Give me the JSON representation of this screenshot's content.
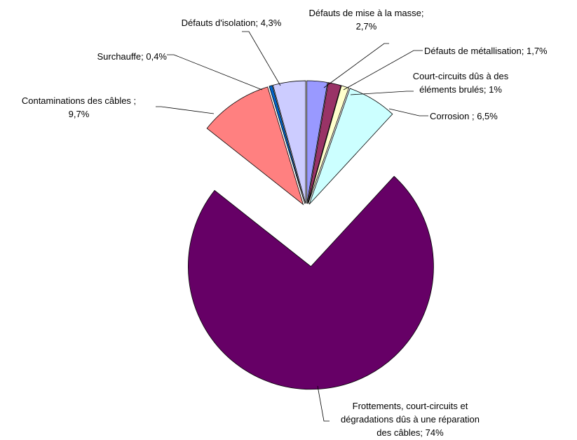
{
  "chart_data": {
    "type": "pie",
    "categories": [
      "Défauts de mise à la masse;",
      "Défauts de métallisation;",
      "Court-circuits dûs à des éléments brulés;",
      "Corrosion ;",
      "Frottements, court-circuits et dégradations dûs à une réparation des câbles;",
      "Contaminations des câbles ;",
      "Surchauffe;",
      "Défauts d'isolation;"
    ],
    "values": [
      2.7,
      1.7,
      1,
      6.5,
      74,
      9.7,
      0.4,
      4.3
    ],
    "value_labels": [
      "2,7%",
      "1,7%",
      "1%",
      "6,5%",
      "74%",
      "9,7%",
      "0,4%",
      "4,3%"
    ],
    "colors": [
      "#9999ff",
      "#993366",
      "#ffffcc",
      "#ccffff",
      "#660066",
      "#ff8080",
      "#0066cc",
      "#ccccff"
    ]
  }
}
